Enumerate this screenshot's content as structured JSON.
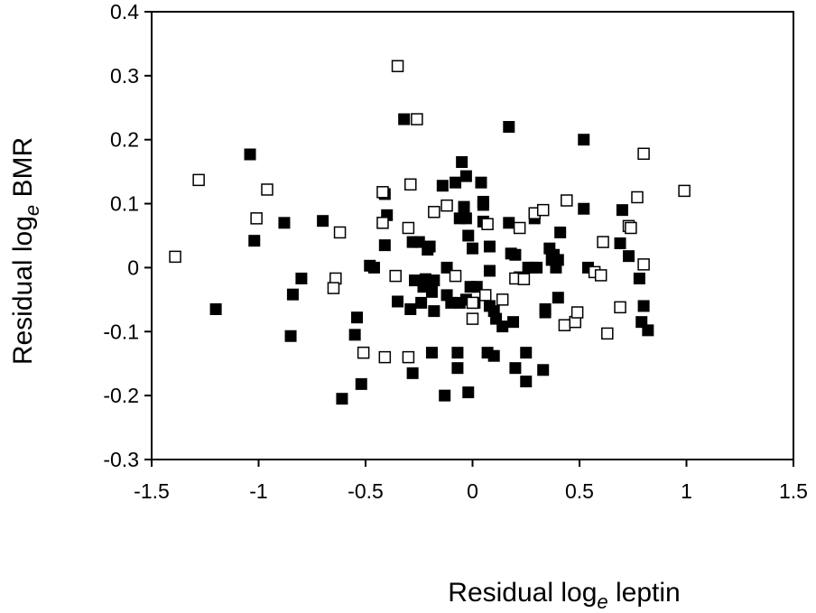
{
  "chart_data": {
    "type": "scatter",
    "title": "",
    "xlabel": {
      "prefix": "Residual log",
      "subscript": "e",
      "suffix": " leptin"
    },
    "ylabel": {
      "prefix": "Residual log",
      "subscript": "e",
      "suffix": " BMR"
    },
    "xlim": [
      -1.5,
      1.5
    ],
    "ylim": [
      -0.3,
      0.4
    ],
    "xticks": [
      "-1.5",
      "-1",
      "-0.5",
      "0",
      "0.5",
      "1",
      "1.5"
    ],
    "yticks": [
      "-0.3",
      "-0.2",
      "-0.1",
      "0",
      "0.1",
      "0.2",
      "0.3",
      "0.4"
    ],
    "grid": false,
    "legend": "none",
    "series": [
      {
        "marker": "filled-square",
        "color": "#000000",
        "points": [
          [
            -1.2,
            -0.065
          ],
          [
            -1.04,
            0.177
          ],
          [
            -1.02,
            0.042
          ],
          [
            -0.88,
            0.07
          ],
          [
            -0.85,
            -0.107
          ],
          [
            -0.84,
            -0.042
          ],
          [
            -0.8,
            -0.017
          ],
          [
            -0.7,
            0.073
          ],
          [
            -0.61,
            -0.205
          ],
          [
            -0.55,
            -0.105
          ],
          [
            -0.54,
            -0.078
          ],
          [
            -0.52,
            -0.182
          ],
          [
            -0.48,
            0.003
          ],
          [
            -0.46,
            0.0
          ],
          [
            -0.41,
            0.115
          ],
          [
            -0.41,
            0.035
          ],
          [
            -0.4,
            0.082
          ],
          [
            -0.35,
            -0.053
          ],
          [
            -0.32,
            0.232
          ],
          [
            -0.29,
            -0.065
          ],
          [
            -0.28,
            0.04
          ],
          [
            -0.28,
            -0.165
          ],
          [
            -0.27,
            -0.02
          ],
          [
            -0.25,
            0.04
          ],
          [
            -0.24,
            -0.055
          ],
          [
            -0.23,
            -0.03
          ],
          [
            -0.22,
            -0.018
          ],
          [
            -0.21,
            0.028
          ],
          [
            -0.2,
            0.033
          ],
          [
            -0.19,
            -0.038
          ],
          [
            -0.18,
            -0.02
          ],
          [
            -0.18,
            -0.068
          ],
          [
            -0.19,
            -0.133
          ],
          [
            -0.14,
            0.128
          ],
          [
            -0.13,
            -0.2
          ],
          [
            -0.12,
            -0.043
          ],
          [
            -0.12,
            0.0
          ],
          [
            -0.1,
            -0.055
          ],
          [
            -0.08,
            0.133
          ],
          [
            -0.07,
            -0.157
          ],
          [
            -0.07,
            -0.133
          ],
          [
            -0.06,
            0.077
          ],
          [
            -0.06,
            -0.055
          ],
          [
            -0.05,
            0.165
          ],
          [
            -0.04,
            0.09
          ],
          [
            -0.04,
            0.095
          ],
          [
            -0.03,
            0.143
          ],
          [
            -0.03,
            0.077
          ],
          [
            -0.03,
            -0.05
          ],
          [
            -0.02,
            0.05
          ],
          [
            -0.02,
            -0.195
          ],
          [
            -0.01,
            -0.03
          ],
          [
            0.0,
            0.03
          ],
          [
            0.01,
            -0.055
          ],
          [
            0.02,
            -0.03
          ],
          [
            0.04,
            0.133
          ],
          [
            0.05,
            0.098
          ],
          [
            0.05,
            0.072
          ],
          [
            0.05,
            0.103
          ],
          [
            0.07,
            -0.133
          ],
          [
            0.08,
            -0.005
          ],
          [
            0.08,
            0.033
          ],
          [
            0.08,
            -0.06
          ],
          [
            0.1,
            -0.068
          ],
          [
            0.1,
            -0.138
          ],
          [
            0.11,
            -0.08
          ],
          [
            0.14,
            -0.092
          ],
          [
            0.17,
            0.22
          ],
          [
            0.17,
            0.07
          ],
          [
            0.18,
            0.022
          ],
          [
            0.19,
            -0.085
          ],
          [
            0.2,
            0.02
          ],
          [
            0.2,
            -0.157
          ],
          [
            0.22,
            -0.015
          ],
          [
            0.25,
            -0.133
          ],
          [
            0.25,
            -0.178
          ],
          [
            0.26,
            0.0
          ],
          [
            0.28,
            0.0
          ],
          [
            0.29,
            0.077
          ],
          [
            0.3,
            0.0
          ],
          [
            0.33,
            -0.16
          ],
          [
            0.34,
            -0.065
          ],
          [
            0.34,
            -0.07
          ],
          [
            0.36,
            0.03
          ],
          [
            0.37,
            0.012
          ],
          [
            0.38,
            0.02
          ],
          [
            0.39,
            0.0
          ],
          [
            0.4,
            0.012
          ],
          [
            0.4,
            -0.047
          ],
          [
            0.41,
            0.055
          ],
          [
            0.52,
            0.2
          ],
          [
            0.52,
            0.092
          ],
          [
            0.54,
            0.0
          ],
          [
            0.69,
            0.038
          ],
          [
            0.7,
            0.09
          ],
          [
            0.73,
            0.018
          ],
          [
            0.78,
            -0.017
          ],
          [
            0.79,
            -0.085
          ],
          [
            0.8,
            -0.06
          ],
          [
            0.82,
            -0.098
          ]
        ]
      },
      {
        "marker": "open-square",
        "color": "#000000",
        "points": [
          [
            -1.39,
            0.017
          ],
          [
            -1.28,
            0.137
          ],
          [
            -1.01,
            0.077
          ],
          [
            -0.96,
            0.122
          ],
          [
            -0.62,
            0.055
          ],
          [
            -0.64,
            -0.017
          ],
          [
            -0.65,
            -0.032
          ],
          [
            -0.51,
            -0.133
          ],
          [
            -0.42,
            0.118
          ],
          [
            -0.42,
            0.07
          ],
          [
            -0.41,
            -0.14
          ],
          [
            -0.36,
            -0.013
          ],
          [
            -0.35,
            0.315
          ],
          [
            -0.3,
            0.062
          ],
          [
            -0.3,
            -0.14
          ],
          [
            -0.29,
            0.13
          ],
          [
            -0.26,
            0.232
          ],
          [
            -0.18,
            0.087
          ],
          [
            -0.12,
            0.097
          ],
          [
            -0.08,
            -0.013
          ],
          [
            0.0,
            -0.08
          ],
          [
            0.0,
            -0.055
          ],
          [
            0.06,
            -0.043
          ],
          [
            0.07,
            0.068
          ],
          [
            0.14,
            -0.05
          ],
          [
            0.2,
            -0.017
          ],
          [
            0.22,
            0.062
          ],
          [
            0.24,
            -0.018
          ],
          [
            0.29,
            0.085
          ],
          [
            0.33,
            0.09
          ],
          [
            0.44,
            0.105
          ],
          [
            0.43,
            -0.09
          ],
          [
            0.48,
            -0.085
          ],
          [
            0.49,
            -0.07
          ],
          [
            0.57,
            -0.007
          ],
          [
            0.6,
            -0.012
          ],
          [
            0.61,
            0.04
          ],
          [
            0.63,
            -0.103
          ],
          [
            0.69,
            -0.062
          ],
          [
            0.73,
            0.065
          ],
          [
            0.74,
            0.062
          ],
          [
            0.77,
            0.11
          ],
          [
            0.8,
            0.178
          ],
          [
            0.8,
            0.005
          ],
          [
            0.99,
            0.12
          ]
        ]
      }
    ]
  }
}
